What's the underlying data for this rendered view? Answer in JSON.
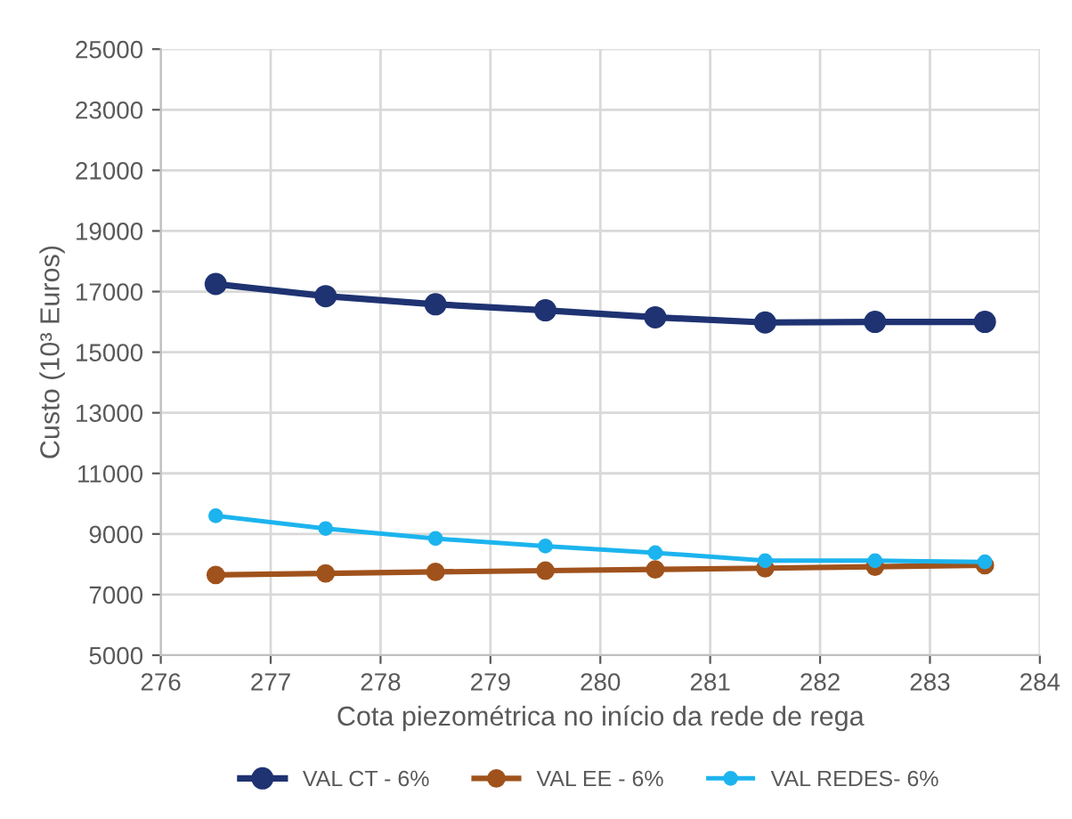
{
  "chart_data": {
    "type": "line",
    "xlabel": "Cota piezométrica no início da rede de rega",
    "ylabel": "Custo (10³ Euros)",
    "x": [
      276.5,
      277.5,
      278.5,
      279.5,
      280.5,
      281.5,
      282.5,
      283.5
    ],
    "series": [
      {
        "name": "VAL CT - 6%",
        "color": "#1f3372",
        "values": [
          17250,
          16850,
          16580,
          16380,
          16150,
          15980,
          16000,
          16000
        ]
      },
      {
        "name": "VAL EE - 6%",
        "color": "#a0521c",
        "values": [
          7650,
          7700,
          7750,
          7790,
          7830,
          7870,
          7920,
          7970
        ]
      },
      {
        "name": "VAL REDES- 6%",
        "color": "#1cb4ee",
        "values": [
          9600,
          9180,
          8850,
          8600,
          8380,
          8120,
          8120,
          8080
        ]
      }
    ],
    "xlim": [
      276,
      284
    ],
    "xticks": [
      276,
      277,
      278,
      279,
      280,
      281,
      282,
      283,
      284
    ],
    "ylim": [
      5000,
      25000
    ],
    "yticks": [
      5000,
      7000,
      9000,
      11000,
      13000,
      15000,
      17000,
      19000,
      21000,
      23000,
      25000
    ],
    "grid": true,
    "legend": "bottom",
    "marker": "circle",
    "line_style": "solid"
  }
}
